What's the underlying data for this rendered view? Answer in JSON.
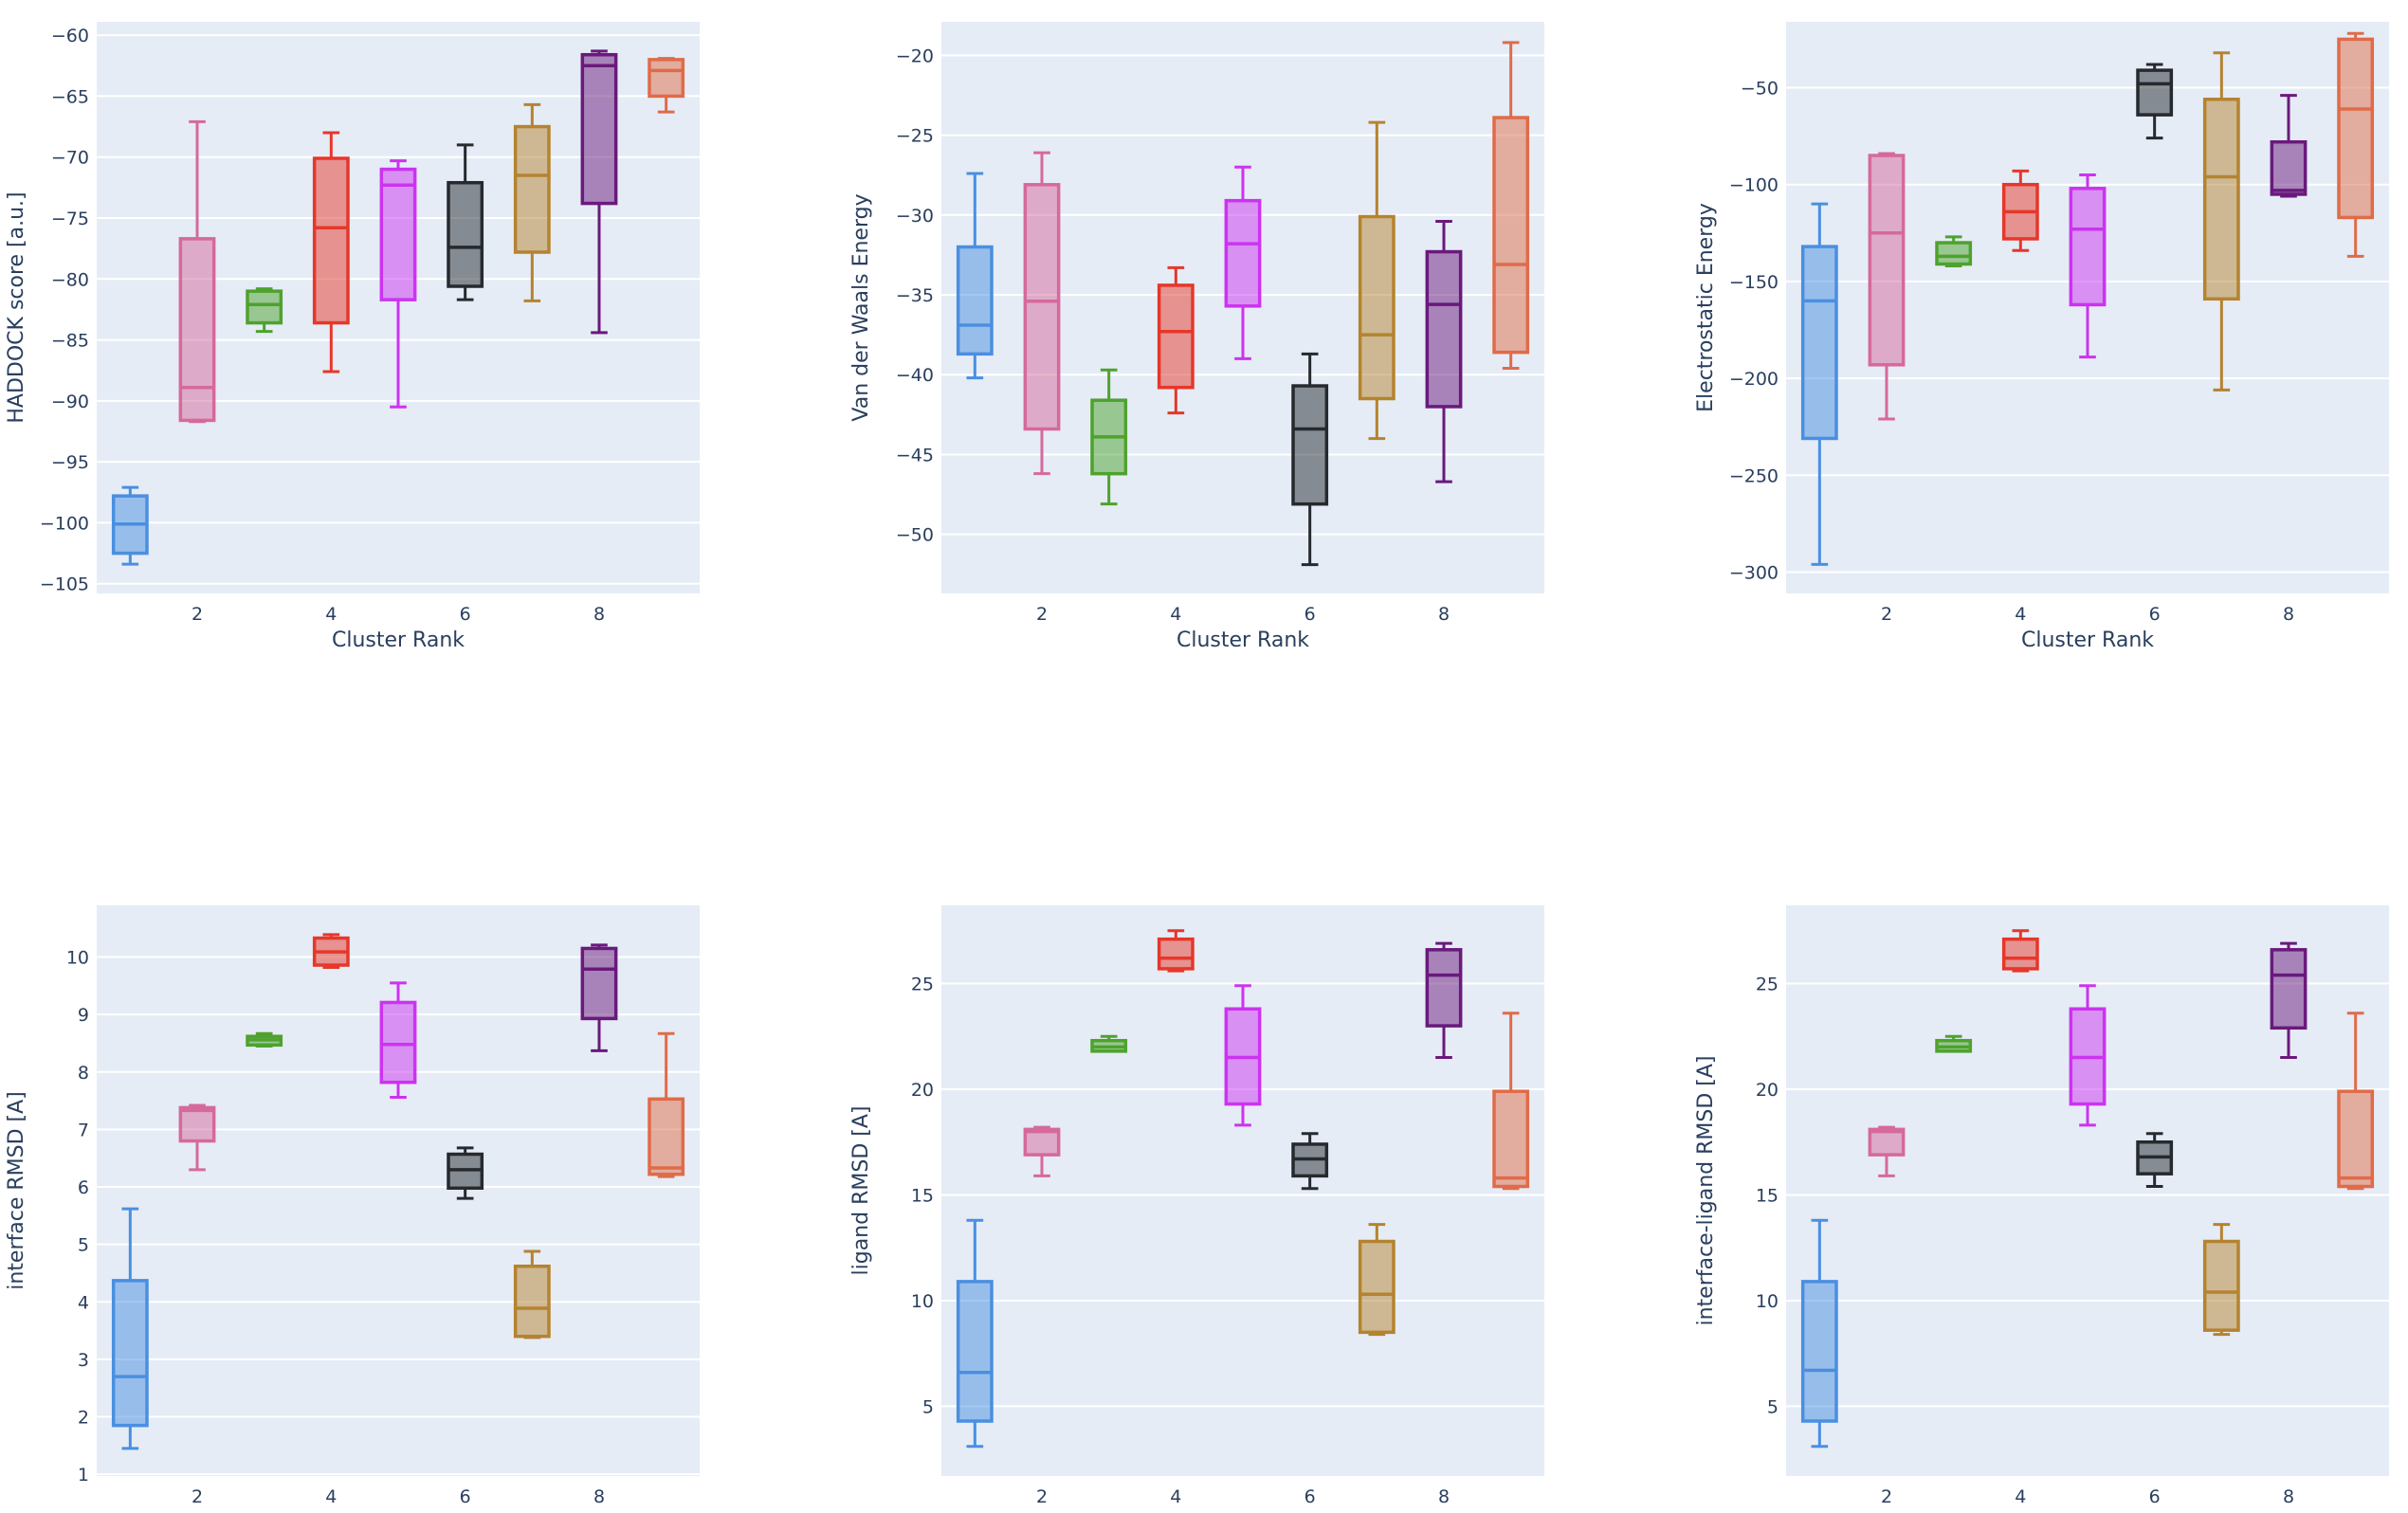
{
  "colors": {
    "plot_bg": "#e5ecf6",
    "grid": "#ffffff",
    "text": "#2a3f5f",
    "clusters": [
      "#4a8fe0",
      "#d6699c",
      "#4ea22d",
      "#e6372a",
      "#cc33f0",
      "#262a2e",
      "#b5832f",
      "#6a197c",
      "#e06b48"
    ]
  },
  "chart_data": [
    {
      "type": "box",
      "title": "",
      "xlabel": "Cluster Rank",
      "ylabel": "HADDOCK score [a.u.]",
      "xlim": [
        0.5,
        9.5
      ],
      "ylim": [
        -105.8,
        -58.9
      ],
      "xticks": [
        2,
        4,
        6,
        8
      ],
      "yticks": [
        -105,
        -100,
        -95,
        -90,
        -85,
        -80,
        -75,
        -70,
        -65,
        -60
      ],
      "grid": true,
      "legend": "none",
      "categories": [
        1,
        2,
        3,
        4,
        5,
        6,
        7,
        8,
        9
      ],
      "boxes": [
        {
          "cluster": 1,
          "lower": -103.4,
          "q1": -102.5,
          "median": -100.1,
          "q3": -97.8,
          "upper": -97.1
        },
        {
          "cluster": 2,
          "lower": -91.7,
          "q1": -91.6,
          "median": -88.9,
          "q3": -76.7,
          "upper": -67.1
        },
        {
          "cluster": 3,
          "lower": -84.3,
          "q1": -83.6,
          "median": -82.1,
          "q3": -81.0,
          "upper": -80.8
        },
        {
          "cluster": 4,
          "lower": -87.6,
          "q1": -83.6,
          "median": -75.8,
          "q3": -70.1,
          "upper": -68.0
        },
        {
          "cluster": 5,
          "lower": -90.5,
          "q1": -81.7,
          "median": -72.3,
          "q3": -71.0,
          "upper": -70.3
        },
        {
          "cluster": 6,
          "lower": -81.7,
          "q1": -80.6,
          "median": -77.4,
          "q3": -72.1,
          "upper": -69.0
        },
        {
          "cluster": 7,
          "lower": -81.8,
          "q1": -77.8,
          "median": -71.5,
          "q3": -67.5,
          "upper": -65.7
        },
        {
          "cluster": 8,
          "lower": -84.4,
          "q1": -73.8,
          "median": -62.5,
          "q3": -61.6,
          "upper": -61.3
        },
        {
          "cluster": 9,
          "lower": -66.3,
          "q1": -65.0,
          "median": -62.9,
          "q3": -62.0,
          "upper": -61.9
        }
      ]
    },
    {
      "type": "box",
      "title": "",
      "xlabel": "Cluster Rank",
      "ylabel": "Van der Waals Energy",
      "xlim": [
        0.5,
        9.5
      ],
      "ylim": [
        -53.7,
        -17.9
      ],
      "xticks": [
        2,
        4,
        6,
        8
      ],
      "yticks": [
        -50,
        -45,
        -40,
        -35,
        -30,
        -25,
        -20
      ],
      "grid": true,
      "legend": "none",
      "categories": [
        1,
        2,
        3,
        4,
        5,
        6,
        7,
        8,
        9
      ],
      "boxes": [
        {
          "cluster": 1,
          "lower": -40.2,
          "q1": -38.7,
          "median": -36.9,
          "q3": -32.0,
          "upper": -27.4
        },
        {
          "cluster": 2,
          "lower": -46.2,
          "q1": -43.4,
          "median": -35.4,
          "q3": -28.1,
          "upper": -26.1
        },
        {
          "cluster": 3,
          "lower": -48.1,
          "q1": -46.2,
          "median": -43.9,
          "q3": -41.6,
          "upper": -39.7
        },
        {
          "cluster": 4,
          "lower": -42.4,
          "q1": -40.8,
          "median": -37.3,
          "q3": -34.4,
          "upper": -33.3
        },
        {
          "cluster": 5,
          "lower": -39.0,
          "q1": -35.7,
          "median": -31.8,
          "q3": -29.1,
          "upper": -27.0
        },
        {
          "cluster": 6,
          "lower": -51.9,
          "q1": -48.1,
          "median": -43.4,
          "q3": -40.7,
          "upper": -38.7
        },
        {
          "cluster": 7,
          "lower": -44.0,
          "q1": -41.5,
          "median": -37.5,
          "q3": -30.1,
          "upper": -24.2
        },
        {
          "cluster": 8,
          "lower": -46.7,
          "q1": -42.0,
          "median": -35.6,
          "q3": -32.3,
          "upper": -30.4
        },
        {
          "cluster": 9,
          "lower": -39.6,
          "q1": -38.6,
          "median": -33.1,
          "q3": -23.9,
          "upper": -19.2
        }
      ]
    },
    {
      "type": "box",
      "title": "",
      "xlabel": "Cluster Rank",
      "ylabel": "Electrostatic Energy",
      "xlim": [
        0.5,
        9.5
      ],
      "ylim": [
        -311,
        -16
      ],
      "xticks": [
        2,
        4,
        6,
        8
      ],
      "yticks": [
        -300,
        -250,
        -200,
        -150,
        -100,
        -50
      ],
      "grid": true,
      "legend": "none",
      "categories": [
        1,
        2,
        3,
        4,
        5,
        6,
        7,
        8,
        9
      ],
      "boxes": [
        {
          "cluster": 1,
          "lower": -296,
          "q1": -231,
          "median": -160,
          "q3": -132,
          "upper": -110
        },
        {
          "cluster": 2,
          "lower": -221,
          "q1": -193,
          "median": -125,
          "q3": -85,
          "upper": -84
        },
        {
          "cluster": 3,
          "lower": -142,
          "q1": -141,
          "median": -137,
          "q3": -130,
          "upper": -127
        },
        {
          "cluster": 4,
          "lower": -134,
          "q1": -128,
          "median": -114,
          "q3": -100,
          "upper": -93
        },
        {
          "cluster": 5,
          "lower": -189,
          "q1": -162,
          "median": -123,
          "q3": -102,
          "upper": -95
        },
        {
          "cluster": 6,
          "lower": -76,
          "q1": -64,
          "median": -48,
          "q3": -41,
          "upper": -38
        },
        {
          "cluster": 7,
          "lower": -206,
          "q1": -159,
          "median": -96,
          "q3": -56,
          "upper": -32
        },
        {
          "cluster": 8,
          "lower": -106,
          "q1": -105,
          "median": -103,
          "q3": -78,
          "upper": -54
        },
        {
          "cluster": 9,
          "lower": -137,
          "q1": -117,
          "median": -61,
          "q3": -25,
          "upper": -22
        }
      ]
    },
    {
      "type": "box",
      "title": "",
      "xlabel": "Cluster Rank",
      "ylabel": "interface RMSD [A]",
      "xlim": [
        0.5,
        9.5
      ],
      "ylim": [
        0.97,
        10.9
      ],
      "xticks": [
        2,
        4,
        6,
        8
      ],
      "yticks": [
        1,
        2,
        3,
        4,
        5,
        6,
        7,
        8,
        9,
        10
      ],
      "grid": true,
      "legend": "none",
      "categories": [
        1,
        2,
        3,
        4,
        5,
        6,
        7,
        8,
        9
      ],
      "boxes": [
        {
          "cluster": 1,
          "lower": 1.45,
          "q1": 1.85,
          "median": 2.7,
          "q3": 4.37,
          "upper": 5.62
        },
        {
          "cluster": 2,
          "lower": 6.3,
          "q1": 6.8,
          "median": 7.33,
          "q3": 7.38,
          "upper": 7.42
        },
        {
          "cluster": 3,
          "lower": 8.45,
          "q1": 8.47,
          "median": 8.56,
          "q3": 8.62,
          "upper": 8.67
        },
        {
          "cluster": 4,
          "lower": 9.82,
          "q1": 9.86,
          "median": 10.09,
          "q3": 10.33,
          "upper": 10.39
        },
        {
          "cluster": 5,
          "lower": 7.56,
          "q1": 7.82,
          "median": 8.48,
          "q3": 9.21,
          "upper": 9.55
        },
        {
          "cluster": 6,
          "lower": 5.8,
          "q1": 5.98,
          "median": 6.3,
          "q3": 6.57,
          "upper": 6.68
        },
        {
          "cluster": 7,
          "lower": 3.38,
          "q1": 3.4,
          "median": 3.89,
          "q3": 4.62,
          "upper": 4.88
        },
        {
          "cluster": 8,
          "lower": 8.37,
          "q1": 8.93,
          "median": 9.79,
          "q3": 10.15,
          "upper": 10.21
        },
        {
          "cluster": 9,
          "lower": 6.18,
          "q1": 6.22,
          "median": 6.33,
          "q3": 7.53,
          "upper": 8.67
        }
      ]
    },
    {
      "type": "box",
      "title": "",
      "xlabel": "Cluster Rank",
      "ylabel": "ligand RMSD [A]",
      "xlim": [
        0.5,
        9.5
      ],
      "ylim": [
        1.7,
        28.7
      ],
      "xticks": [
        2,
        4,
        6,
        8
      ],
      "yticks": [
        5,
        10,
        15,
        20,
        25
      ],
      "grid": true,
      "legend": "none",
      "categories": [
        1,
        2,
        3,
        4,
        5,
        6,
        7,
        8,
        9
      ],
      "boxes": [
        {
          "cluster": 1,
          "lower": 3.1,
          "q1": 4.3,
          "median": 6.6,
          "q3": 10.9,
          "upper": 13.8
        },
        {
          "cluster": 2,
          "lower": 15.9,
          "q1": 16.9,
          "median": 18.0,
          "q3": 18.1,
          "upper": 18.2
        },
        {
          "cluster": 3,
          "lower": 21.8,
          "q1": 21.8,
          "median": 22.0,
          "q3": 22.3,
          "upper": 22.5
        },
        {
          "cluster": 4,
          "lower": 25.6,
          "q1": 25.7,
          "median": 26.2,
          "q3": 27.1,
          "upper": 27.5
        },
        {
          "cluster": 5,
          "lower": 18.3,
          "q1": 19.3,
          "median": 21.5,
          "q3": 23.8,
          "upper": 24.9
        },
        {
          "cluster": 6,
          "lower": 15.3,
          "q1": 15.9,
          "median": 16.7,
          "q3": 17.4,
          "upper": 17.9
        },
        {
          "cluster": 7,
          "lower": 8.4,
          "q1": 8.5,
          "median": 10.3,
          "q3": 12.8,
          "upper": 13.6
        },
        {
          "cluster": 8,
          "lower": 21.5,
          "q1": 23.0,
          "median": 25.4,
          "q3": 26.6,
          "upper": 26.9
        },
        {
          "cluster": 9,
          "lower": 15.3,
          "q1": 15.4,
          "median": 15.8,
          "q3": 19.9,
          "upper": 23.6
        }
      ]
    },
    {
      "type": "box",
      "title": "",
      "xlabel": "Cluster Rank",
      "ylabel": "interface-ligand RMSD [A]",
      "xlim": [
        0.5,
        9.5
      ],
      "ylim": [
        1.7,
        28.7
      ],
      "xticks": [
        2,
        4,
        6,
        8
      ],
      "yticks": [
        5,
        10,
        15,
        20,
        25
      ],
      "grid": true,
      "legend": "none",
      "categories": [
        1,
        2,
        3,
        4,
        5,
        6,
        7,
        8,
        9
      ],
      "boxes": [
        {
          "cluster": 1,
          "lower": 3.1,
          "q1": 4.3,
          "median": 6.7,
          "q3": 10.9,
          "upper": 13.8
        },
        {
          "cluster": 2,
          "lower": 15.9,
          "q1": 16.9,
          "median": 18.0,
          "q3": 18.1,
          "upper": 18.2
        },
        {
          "cluster": 3,
          "lower": 21.8,
          "q1": 21.8,
          "median": 22.0,
          "q3": 22.3,
          "upper": 22.5
        },
        {
          "cluster": 4,
          "lower": 25.6,
          "q1": 25.7,
          "median": 26.2,
          "q3": 27.1,
          "upper": 27.5
        },
        {
          "cluster": 5,
          "lower": 18.3,
          "q1": 19.3,
          "median": 21.5,
          "q3": 23.8,
          "upper": 24.9
        },
        {
          "cluster": 6,
          "lower": 15.4,
          "q1": 16.0,
          "median": 16.8,
          "q3": 17.5,
          "upper": 17.9
        },
        {
          "cluster": 7,
          "lower": 8.4,
          "q1": 8.6,
          "median": 10.4,
          "q3": 12.8,
          "upper": 13.6
        },
        {
          "cluster": 8,
          "lower": 21.5,
          "q1": 22.9,
          "median": 25.4,
          "q3": 26.6,
          "upper": 26.9
        },
        {
          "cluster": 9,
          "lower": 15.3,
          "q1": 15.4,
          "median": 15.8,
          "q3": 19.9,
          "upper": 23.6
        }
      ]
    }
  ]
}
